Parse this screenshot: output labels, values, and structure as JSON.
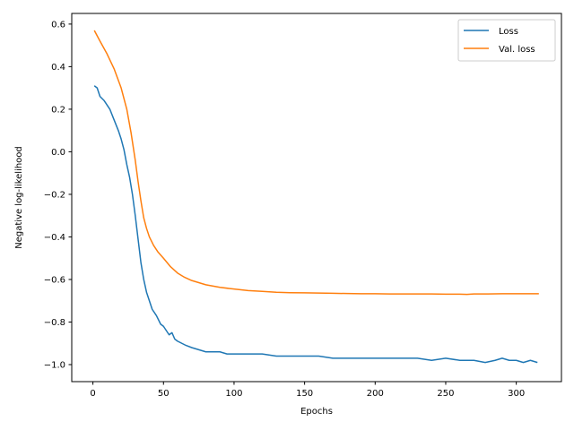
{
  "chart_data": {
    "type": "line",
    "xlabel": "Epochs",
    "ylabel": "Negative log-likelihood",
    "xlim": [
      -15,
      332
    ],
    "ylim": [
      -1.08,
      0.65
    ],
    "xticks": [
      0,
      50,
      100,
      150,
      200,
      250,
      300
    ],
    "yticks": [
      -1.0,
      -0.8,
      -0.6,
      -0.4,
      -0.2,
      0.0,
      0.2,
      0.4,
      0.6
    ],
    "grid": false,
    "legend_position": "top-right",
    "series": [
      {
        "name": "Loss",
        "color": "#1f77b4",
        "x": [
          1,
          3,
          5,
          8,
          10,
          12,
          15,
          18,
          20,
          22,
          24,
          26,
          28,
          30,
          32,
          34,
          36,
          38,
          40,
          42,
          45,
          48,
          50,
          52,
          54,
          56,
          58,
          60,
          63,
          66,
          70,
          75,
          80,
          85,
          90,
          95,
          100,
          110,
          120,
          130,
          140,
          150,
          160,
          170,
          180,
          190,
          200,
          210,
          220,
          230,
          240,
          250,
          260,
          270,
          278,
          285,
          290,
          295,
          300,
          305,
          310,
          315
        ],
        "y": [
          0.31,
          0.3,
          0.26,
          0.24,
          0.22,
          0.2,
          0.15,
          0.1,
          0.06,
          0.01,
          -0.06,
          -0.12,
          -0.2,
          -0.3,
          -0.41,
          -0.52,
          -0.6,
          -0.66,
          -0.7,
          -0.74,
          -0.77,
          -0.81,
          -0.82,
          -0.84,
          -0.86,
          -0.85,
          -0.88,
          -0.89,
          -0.9,
          -0.91,
          -0.92,
          -0.93,
          -0.94,
          -0.94,
          -0.94,
          -0.95,
          -0.95,
          -0.95,
          -0.95,
          -0.96,
          -0.96,
          -0.96,
          -0.96,
          -0.97,
          -0.97,
          -0.97,
          -0.97,
          -0.97,
          -0.97,
          -0.97,
          -0.98,
          -0.97,
          -0.98,
          -0.98,
          -0.99,
          -0.98,
          -0.97,
          -0.98,
          -0.98,
          -0.99,
          -0.98,
          -0.99
        ]
      },
      {
        "name": "Val. loss",
        "color": "#ff7f0e",
        "x": [
          1,
          5,
          10,
          15,
          20,
          24,
          27,
          30,
          32,
          34,
          36,
          38,
          40,
          43,
          46,
          50,
          55,
          60,
          65,
          70,
          80,
          90,
          100,
          110,
          120,
          130,
          140,
          150,
          160,
          170,
          180,
          190,
          200,
          210,
          220,
          230,
          240,
          250,
          260,
          265,
          270,
          280,
          290,
          300,
          310,
          316
        ],
        "y": [
          0.57,
          0.52,
          0.46,
          0.39,
          0.3,
          0.2,
          0.09,
          -0.04,
          -0.14,
          -0.23,
          -0.31,
          -0.36,
          -0.4,
          -0.44,
          -0.47,
          -0.5,
          -0.54,
          -0.57,
          -0.59,
          -0.605,
          -0.625,
          -0.637,
          -0.645,
          -0.652,
          -0.656,
          -0.66,
          -0.662,
          -0.663,
          -0.664,
          -0.665,
          -0.666,
          -0.667,
          -0.667,
          -0.668,
          -0.668,
          -0.668,
          -0.668,
          -0.669,
          -0.669,
          -0.67,
          -0.668,
          -0.668,
          -0.667,
          -0.667,
          -0.667,
          -0.667
        ]
      }
    ]
  }
}
